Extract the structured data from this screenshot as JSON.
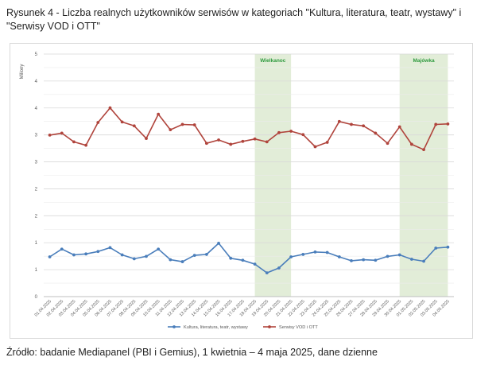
{
  "caption": "Rysunek 4 - Liczba realnych użytkowników serwisów w kategoriach \"Kultura, literatura, teatr, wystawy\" i \"Serwisy VOD i OTT\"",
  "source": "Źródło: badanie Mediapanel (PBI i Gemius), 1 kwietnia – 4 maja 2025, dane dzienne",
  "chart_data": {
    "type": "line",
    "ylabel": "Miliony",
    "ylim": [
      0,
      5
    ],
    "yticks": [
      "0",
      "1",
      "1",
      "2",
      "2",
      "3",
      "3",
      "4",
      "4",
      "5"
    ],
    "grid": true,
    "legend_position": "bottom",
    "x": [
      "01.04.2025",
      "02.04.2025",
      "03.04.2025",
      "04.04.2025",
      "05.04.2025",
      "06.04.2025",
      "07.04.2025",
      "08.04.2025",
      "09.04.2025",
      "10.04.2025",
      "11.04.2025",
      "12.04.2025",
      "13.04.2025",
      "14.04.2025",
      "15.04.2025",
      "16.04.2025",
      "17.04.2025",
      "18.04.2025",
      "19.04.2025",
      "20.04.2025",
      "21.04.2025",
      "22.04.2025",
      "23.04.2025",
      "24.04.2025",
      "25.04.2025",
      "26.04.2025",
      "27.04.2025",
      "28.04.2025",
      "29.04.2025",
      "30.04.2025",
      "01.05.2025",
      "02.05.2025",
      "03.05.2025",
      "04.05.2025"
    ],
    "series": [
      {
        "name": "Kultura, literatura, teatr, wystawy",
        "color": "#4a7ebb",
        "values": [
          0.82,
          0.98,
          0.86,
          0.88,
          0.93,
          1.01,
          0.86,
          0.78,
          0.83,
          0.98,
          0.76,
          0.72,
          0.85,
          0.87,
          1.1,
          0.79,
          0.75,
          0.67,
          0.49,
          0.59,
          0.82,
          0.87,
          0.92,
          0.91,
          0.82,
          0.74,
          0.76,
          0.75,
          0.83,
          0.86,
          0.77,
          0.73,
          1.0,
          1.02
        ]
      },
      {
        "name": "Serwisy VOD i OTT",
        "color": "#b0443c",
        "values": [
          3.33,
          3.37,
          3.19,
          3.12,
          3.59,
          3.89,
          3.6,
          3.52,
          3.26,
          3.76,
          3.44,
          3.55,
          3.54,
          3.16,
          3.23,
          3.14,
          3.2,
          3.25,
          3.19,
          3.38,
          3.41,
          3.34,
          3.09,
          3.18,
          3.61,
          3.55,
          3.52,
          3.37,
          3.16,
          3.5,
          3.14,
          3.03,
          3.55,
          3.56
        ]
      }
    ],
    "bands": [
      {
        "label": "Wielkanoc",
        "from": "18.04.2025",
        "to": "21.04.2025",
        "color": "#e2edd8",
        "label_color": "#2e9a3e"
      },
      {
        "label": "Majówka",
        "from": "30.04.2025",
        "to": "04.05.2025",
        "color": "#e2edd8",
        "label_color": "#2e9a3e"
      }
    ]
  }
}
